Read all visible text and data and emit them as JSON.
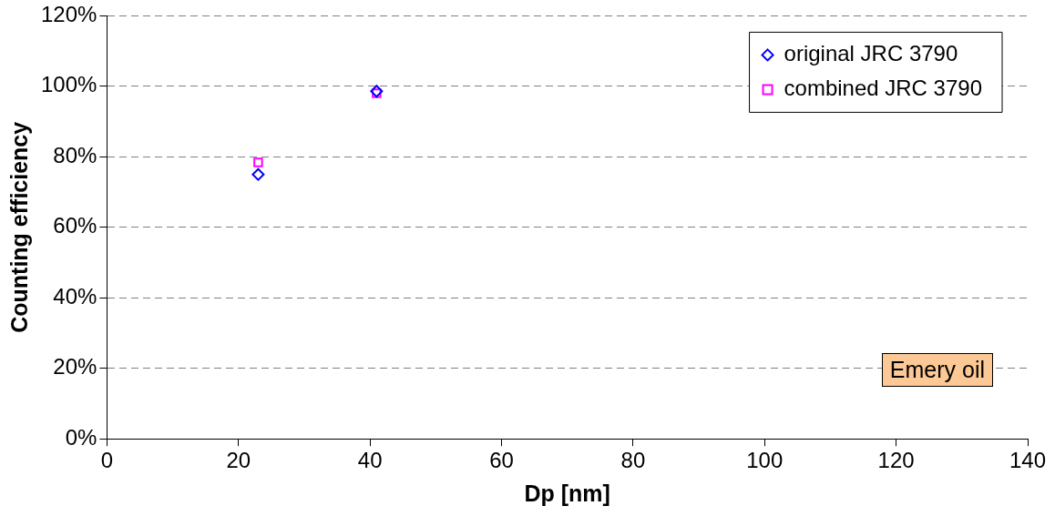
{
  "chart_data": {
    "type": "scatter",
    "xlabel": "Dp [nm]",
    "ylabel": "Counting efficiency",
    "xlim": [
      0,
      140
    ],
    "xticks": [
      0,
      20,
      40,
      60,
      80,
      100,
      120,
      140
    ],
    "ylim": [
      0,
      1.2
    ],
    "yticks": [
      {
        "value": 0,
        "label": "0%"
      },
      {
        "value": 0.2,
        "label": "20%"
      },
      {
        "value": 0.4,
        "label": "40%"
      },
      {
        "value": 0.6,
        "label": "60%"
      },
      {
        "value": 0.8,
        "label": "80%"
      },
      {
        "value": 1,
        "label": "100%"
      },
      {
        "value": 1.2,
        "label": "120%"
      }
    ],
    "grid": "y",
    "legend": "top right",
    "x": [
      23,
      41
    ],
    "series": [
      {
        "name": "original JRC 3790",
        "color": "#0000ff",
        "marker": "diamond",
        "values": [
          0.75,
          0.986
        ]
      },
      {
        "name": "combined JRC 3790",
        "color": "#ff00ff",
        "marker": "square",
        "values": [
          0.784,
          0.98
        ]
      }
    ],
    "annotations": [
      "Emery oil"
    ]
  }
}
